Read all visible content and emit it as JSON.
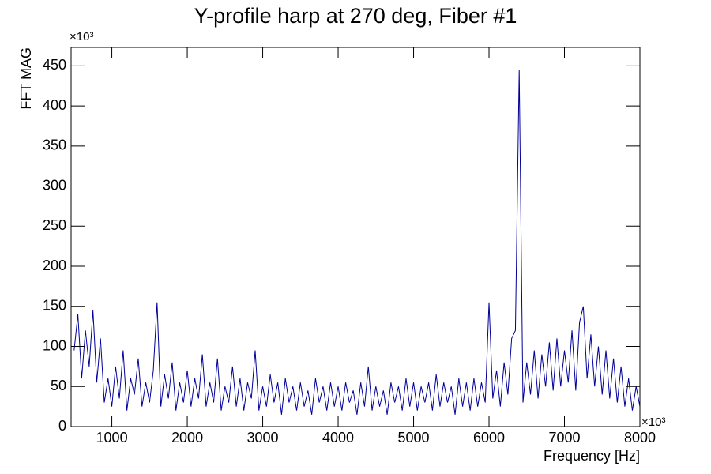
{
  "chart_data": {
    "type": "line",
    "title": "Y-profile harp at 270 deg, Fiber #1",
    "x_label": "Frequency [Hz]",
    "y_label": "FFT MAG",
    "x_multiplier": "×10³",
    "y_multiplier": "×10³",
    "color": "#000099",
    "xlim": [
      460,
      8000
    ],
    "ylim": [
      0,
      473
    ],
    "xticks": [
      1000,
      2000,
      3000,
      4000,
      5000,
      6000,
      7000,
      8000
    ],
    "yticks": [
      0,
      50,
      100,
      150,
      200,
      250,
      300,
      350,
      400,
      450
    ],
    "x": [
      500,
      550,
      600,
      650,
      700,
      750,
      800,
      850,
      900,
      950,
      1000,
      1050,
      1100,
      1150,
      1200,
      1250,
      1300,
      1350,
      1400,
      1450,
      1500,
      1550,
      1600,
      1650,
      1700,
      1750,
      1800,
      1850,
      1900,
      1950,
      2000,
      2050,
      2100,
      2150,
      2200,
      2250,
      2300,
      2350,
      2400,
      2450,
      2500,
      2550,
      2600,
      2650,
      2700,
      2750,
      2800,
      2850,
      2900,
      2950,
      3000,
      3050,
      3100,
      3150,
      3200,
      3250,
      3300,
      3350,
      3400,
      3450,
      3500,
      3550,
      3600,
      3650,
      3700,
      3750,
      3800,
      3850,
      3900,
      3950,
      4000,
      4050,
      4100,
      4150,
      4200,
      4250,
      4300,
      4350,
      4400,
      4450,
      4500,
      4550,
      4600,
      4650,
      4700,
      4750,
      4800,
      4850,
      4900,
      4950,
      5000,
      5050,
      5100,
      5150,
      5200,
      5250,
      5300,
      5350,
      5400,
      5450,
      5500,
      5550,
      5600,
      5650,
      5700,
      5750,
      5800,
      5850,
      5900,
      5950,
      6000,
      6050,
      6100,
      6150,
      6200,
      6250,
      6300,
      6350,
      6400,
      6450,
      6500,
      6550,
      6600,
      6650,
      6700,
      6750,
      6800,
      6850,
      6900,
      6950,
      7000,
      7050,
      7100,
      7150,
      7200,
      7250,
      7300,
      7350,
      7400,
      7450,
      7500,
      7550,
      7600,
      7650,
      7700,
      7750,
      7800,
      7850,
      7900,
      7950,
      8000
    ],
    "values": [
      95,
      140,
      60,
      120,
      75,
      145,
      55,
      110,
      30,
      60,
      25,
      75,
      35,
      95,
      20,
      60,
      40,
      85,
      25,
      55,
      30,
      70,
      155,
      25,
      65,
      35,
      80,
      20,
      55,
      30,
      70,
      25,
      60,
      35,
      90,
      25,
      55,
      30,
      85,
      20,
      50,
      30,
      75,
      25,
      60,
      20,
      55,
      35,
      95,
      20,
      50,
      25,
      65,
      30,
      55,
      15,
      60,
      30,
      50,
      20,
      55,
      25,
      45,
      15,
      60,
      30,
      50,
      20,
      55,
      25,
      50,
      20,
      55,
      30,
      45,
      15,
      55,
      25,
      75,
      20,
      50,
      25,
      45,
      15,
      55,
      30,
      50,
      20,
      60,
      25,
      55,
      20,
      50,
      30,
      55,
      20,
      65,
      25,
      55,
      30,
      50,
      15,
      60,
      25,
      55,
      20,
      60,
      25,
      55,
      30,
      155,
      35,
      70,
      25,
      80,
      40,
      110,
      120,
      445,
      30,
      80,
      40,
      95,
      35,
      90,
      50,
      105,
      45,
      110,
      50,
      95,
      55,
      120,
      45,
      130,
      150,
      60,
      115,
      50,
      100,
      40,
      95,
      35,
      85,
      30,
      75,
      25,
      60,
      20,
      50,
      25
    ]
  }
}
